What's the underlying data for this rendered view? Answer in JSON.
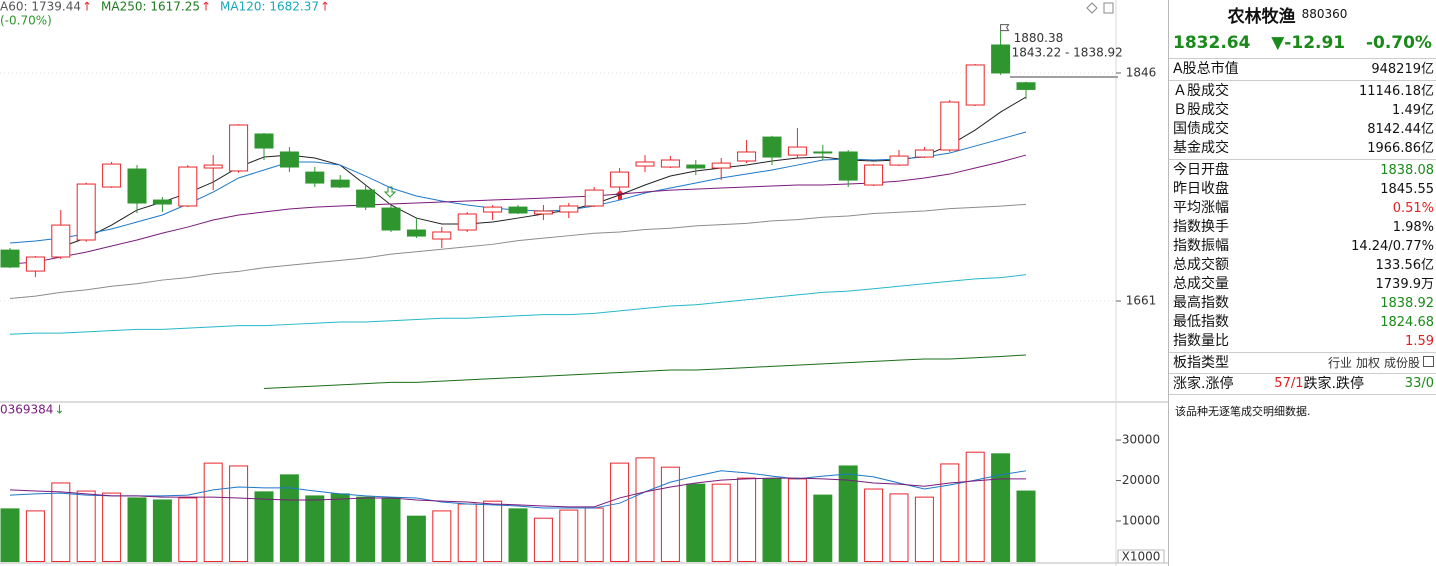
{
  "chart_data": [
    {
      "type": "candlestick",
      "header": [
        {
          "label": "A60: 1739.44",
          "arrow": "↑",
          "color": "#555555"
        },
        {
          "label": "MA250: 1617.25",
          "arrow": "↑",
          "color": "#1e7a1e"
        },
        {
          "label": "MA120: 1682.37",
          "arrow": "↑",
          "color": "#19a7b8"
        }
      ],
      "subheader": "(-0.70%)",
      "annotations": [
        "1880.38",
        "1843.22 - 1838.92"
      ],
      "categories": [
        null,
        null,
        null,
        null,
        null,
        null,
        null,
        null,
        null,
        null,
        null,
        null,
        null,
        null,
        null,
        null,
        null,
        null,
        null,
        null,
        null,
        null,
        null,
        null,
        null,
        null,
        null,
        null,
        null,
        null,
        null,
        null,
        null,
        null,
        null,
        null,
        null,
        null,
        null,
        null,
        null
      ],
      "open": [
        1702.3,
        1685.3,
        1696.7,
        1710.5,
        1753.5,
        1768.1,
        1742.9,
        1738.1,
        1768.9,
        1766.5,
        1796.5,
        1781.9,
        1765.6,
        1759.1,
        1751,
        1736.4,
        1718.6,
        1711.3,
        1718.6,
        1733.2,
        1737.2,
        1731.6,
        1733.2,
        1738.1,
        1753.5,
        1770.5,
        1769.7,
        1771.3,
        1768.9,
        1774.6,
        1794,
        1779.4,
        1781.9,
        1781.9,
        1755.1,
        1771.3,
        1777.8,
        1783.5,
        1820,
        1868.7,
        1838.08
      ],
      "high": [
        1704,
        1697.5,
        1734.8,
        1757,
        1773.8,
        1771.3,
        1745.4,
        1771.3,
        1779.4,
        1804.5,
        1797.3,
        1785.9,
        1769.7,
        1763.2,
        1755.1,
        1738.9,
        1728.3,
        1721,
        1733.2,
        1738.9,
        1738.9,
        1738.9,
        1740.5,
        1753.5,
        1768.9,
        1779.4,
        1778.6,
        1775.4,
        1777,
        1791.6,
        1795,
        1801.3,
        1787.5,
        1783.5,
        1772.1,
        1783.5,
        1785.9,
        1824.1,
        1853.3,
        1880.38,
        1838.92
      ],
      "low": [
        1687.7,
        1680.4,
        1695,
        1709,
        1752.7,
        1732.4,
        1733.2,
        1737.2,
        1751,
        1765,
        1775.4,
        1765.6,
        1753.5,
        1752.7,
        1734.8,
        1717,
        1712.1,
        1704,
        1717,
        1726.7,
        1731.6,
        1726.7,
        1728.3,
        1737.2,
        1751,
        1765.6,
        1768.9,
        1763.2,
        1759.1,
        1772.9,
        1771.3,
        1777,
        1775.4,
        1753.5,
        1754.3,
        1770.5,
        1777,
        1781.9,
        1819.2,
        1844.4,
        1824.68
      ],
      "close": [
        1688.6,
        1696.7,
        1722.6,
        1755.9,
        1772.1,
        1740.5,
        1739.7,
        1769.7,
        1771.3,
        1803.8,
        1785.1,
        1769.7,
        1756.7,
        1753.5,
        1737.2,
        1718.6,
        1713.7,
        1717,
        1731.6,
        1737.2,
        1732.4,
        1734,
        1738.1,
        1751,
        1765.6,
        1773.8,
        1775.4,
        1768.9,
        1772.9,
        1781.9,
        1777.8,
        1785.9,
        1781.1,
        1759.1,
        1771.3,
        1778.6,
        1783.5,
        1822.4,
        1852.5,
        1846,
        1832.64
      ],
      "up_color": "#e8262b",
      "down_color": "#2f962f",
      "ylim": [
        1580.7,
        1905.2
      ],
      "yticks": [
        1846,
        1661
      ],
      "grid": true,
      "lines": [
        {
          "color": "#222222",
          "values": [
            null,
            null,
            1704.8,
            1712.1,
            1722.6,
            1734.8,
            1741.3,
            1748.6,
            1757.5,
            1769.7,
            1777.8,
            1779.4,
            1777,
            1771.3,
            1755.1,
            1738.9,
            1728.3,
            1723.5,
            1723.5,
            1725.1,
            1728.3,
            1731.6,
            1734.8,
            1739.7,
            1747,
            1755.1,
            1762.4,
            1766.5,
            1768.9,
            1771.3,
            1774.6,
            1777,
            1777.8,
            1775.4,
            1774.6,
            1775.4,
            1778.6,
            1787.5,
            1799.7,
            1814.3,
            1826.5
          ]
        },
        {
          "color": "#1f78c8",
          "values": [
            1708.1,
            1709.7,
            1712.1,
            1715.4,
            1719.4,
            1725.1,
            1730.8,
            1739.7,
            1749.4,
            1760.8,
            1767.3,
            1773.8,
            1773.8,
            1771.3,
            1762.4,
            1752.7,
            1746.2,
            1742.1,
            1738.9,
            1736.4,
            1734.8,
            1734,
            1734.8,
            1738.1,
            1742.9,
            1748.6,
            1752.7,
            1756.7,
            1760.8,
            1764,
            1767.3,
            1771.3,
            1775.4,
            1776.2,
            1775.4,
            1776.2,
            1777.8,
            1781.1,
            1786.7,
            1792.4,
            1798.1
          ]
        },
        {
          "color": "#7b1a7b",
          "values": [
            1691,
            1692.6,
            1696.7,
            1700.7,
            1705.6,
            1710.5,
            1716.1,
            1721,
            1726.7,
            1730.8,
            1733.2,
            1735.6,
            1737.2,
            1738.1,
            1738.9,
            1739.7,
            1740.5,
            1741.3,
            1742.1,
            1742.9,
            1743.7,
            1744.5,
            1745.4,
            1746.2,
            1747.8,
            1749.4,
            1751,
            1751.8,
            1752.7,
            1753.5,
            1754.3,
            1755.1,
            1755.1,
            1755.9,
            1756.7,
            1758.3,
            1760.8,
            1764,
            1768.9,
            1773.8,
            1779.4
          ]
        },
        {
          "color": "#8c8c8c",
          "values": [
            1663,
            1665,
            1668,
            1670,
            1673,
            1675,
            1678,
            1680,
            1683,
            1685,
            1688,
            1690,
            1692,
            1694,
            1696,
            1699,
            1701,
            1703,
            1705,
            1707,
            1710,
            1712,
            1714,
            1716,
            1717,
            1719,
            1720,
            1722,
            1723,
            1724,
            1726,
            1727,
            1729,
            1730,
            1732,
            1733,
            1734,
            1736,
            1737,
            1738,
            1739.44
          ]
        },
        {
          "color": "#27b7c8",
          "values": [
            1634,
            1635,
            1635,
            1636,
            1637,
            1638,
            1638,
            1639,
            1640,
            1641,
            1641,
            1642,
            1643,
            1644,
            1644,
            1645,
            1646,
            1647,
            1647,
            1648,
            1649,
            1650,
            1650,
            1651,
            1653,
            1655,
            1657,
            1658,
            1660,
            1662,
            1664,
            1666,
            1668,
            1669,
            1671,
            1673,
            1675,
            1677,
            1679,
            1680,
            1682.37
          ]
        },
        {
          "color": "#1a6e1a",
          "values": [
            null,
            null,
            null,
            null,
            null,
            null,
            null,
            null,
            null,
            null,
            1590,
            1591,
            1592,
            1593,
            1594,
            1595,
            1595,
            1596,
            1597,
            1598,
            1599,
            1600,
            1601,
            1602,
            1603,
            1604,
            1605,
            1605,
            1606,
            1607,
            1608,
            1609,
            1610,
            1611,
            1612,
            1613,
            1614,
            1614,
            1615,
            1616,
            1617.25
          ]
        }
      ]
    },
    {
      "type": "bar",
      "header": "0369384",
      "header_arrow": "↓",
      "unit": "X1000",
      "categories": [
        null,
        null,
        null,
        null,
        null,
        null,
        null,
        null,
        null,
        null,
        null,
        null,
        null,
        null,
        null,
        null,
        null,
        null,
        null,
        null,
        null,
        null,
        null,
        null,
        null,
        null,
        null,
        null,
        null,
        null,
        null,
        null,
        null,
        null,
        null,
        null,
        null,
        null,
        null,
        null,
        null
      ],
      "values": [
        13000,
        12500,
        19400,
        17400,
        16900,
        15700,
        15200,
        15700,
        24300,
        23600,
        17200,
        21400,
        16200,
        16700,
        15900,
        15700,
        11200,
        12500,
        14200,
        14900,
        13000,
        10700,
        12700,
        13200,
        24300,
        25600,
        23300,
        19100,
        19100,
        20600,
        20400,
        20400,
        16400,
        23600,
        17900,
        16700,
        15900,
        24100,
        27000,
        26600,
        17400
      ],
      "ylim": [
        0,
        39150
      ],
      "yticks": [
        10000,
        20000,
        30000
      ],
      "lines": [
        {
          "color": "#1f78c8",
          "values": [
            16400,
            16700,
            16900,
            16400,
            16200,
            16200,
            16200,
            16400,
            17700,
            18400,
            18200,
            18200,
            17400,
            16700,
            16200,
            15900,
            15700,
            14700,
            14200,
            14000,
            13700,
            13200,
            13200,
            13200,
            14400,
            17200,
            19600,
            21100,
            22400,
            21900,
            21100,
            20400,
            21100,
            21600,
            20900,
            19400,
            17900,
            18900,
            20100,
            21400,
            22400
          ]
        },
        {
          "color": "#7b1a7b",
          "values": [
            17700,
            17400,
            17200,
            16700,
            16200,
            16200,
            15900,
            15900,
            15900,
            15700,
            15400,
            15200,
            15200,
            15400,
            15700,
            15700,
            15200,
            14900,
            14700,
            14200,
            14000,
            13700,
            13500,
            13500,
            15700,
            17200,
            18400,
            19400,
            20100,
            20400,
            20600,
            20600,
            20400,
            20100,
            19400,
            19100,
            18600,
            19400,
            19900,
            20400,
            20400
          ]
        }
      ]
    }
  ],
  "panel": {
    "title": "农林牧渔",
    "code": "880360",
    "price": "1832.64",
    "change": "▼-12.91",
    "change_pct": "-0.70%",
    "groups": [
      [
        {
          "label": "A股总市值",
          "value": "948219亿"
        }
      ],
      [
        {
          "label": "Ａ股成交",
          "value": "11146.18亿"
        },
        {
          "label": "Ｂ股成交",
          "value": "1.49亿"
        },
        {
          "label": "国债成交",
          "value": "8142.44亿"
        },
        {
          "label": "基金成交",
          "value": "1966.86亿"
        }
      ],
      [
        {
          "label": "今日开盘",
          "value": "1838.08",
          "color": "#1a8a1a"
        },
        {
          "label": "昨日收盘",
          "value": "1845.55"
        },
        {
          "label": "平均涨幅",
          "value": "0.51%",
          "color": "#e02020"
        },
        {
          "label": "指数换手",
          "value": "1.98%"
        },
        {
          "label": "指数振幅",
          "value": "14.24/0.77%"
        },
        {
          "label": "总成交额",
          "value": "133.56亿"
        },
        {
          "label": "总成交量",
          "value": "1739.9万"
        },
        {
          "label": "最高指数",
          "value": "1838.92",
          "color": "#1a8a1a"
        },
        {
          "label": "最低指数",
          "value": "1824.68",
          "color": "#1a8a1a"
        },
        {
          "label": "指数量比",
          "value": "1.59",
          "color": "#e02020"
        }
      ]
    ],
    "index_type_label": "板指类型",
    "index_type": [
      "行业",
      "加权",
      "成份股"
    ],
    "breadth": [
      {
        "label": "涨家.涨停",
        "value": "57/1",
        "color": "#e02020"
      },
      {
        "label": "跌家.跌停",
        "value": "33/0",
        "color": "#1a8a1a"
      }
    ],
    "note": "该品种无逐笔成交明细数据."
  }
}
